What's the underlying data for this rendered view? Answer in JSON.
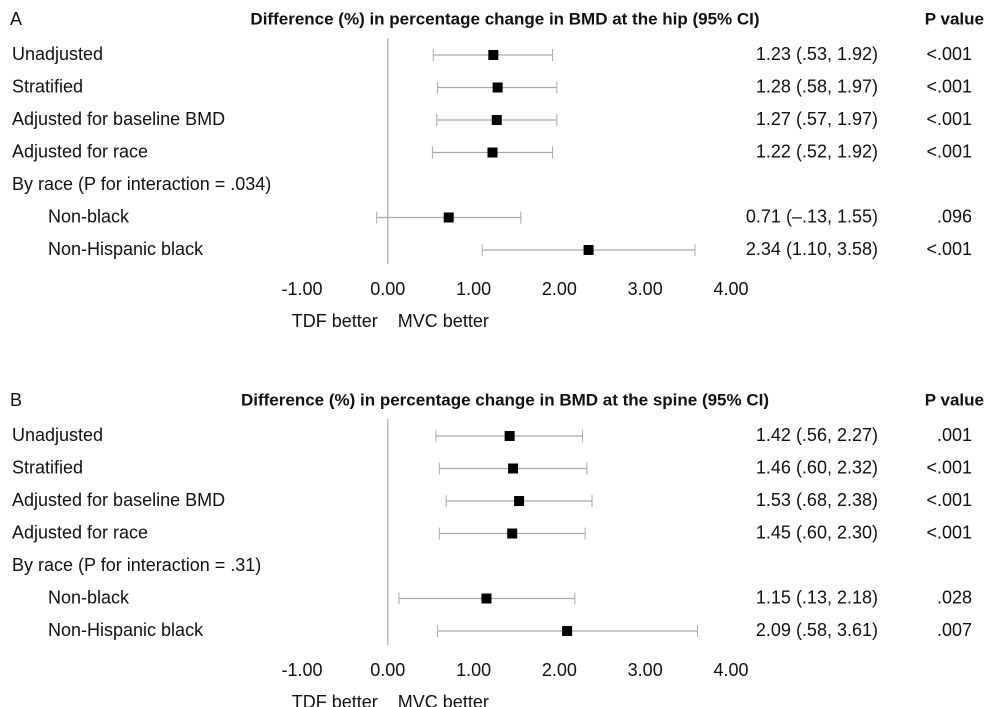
{
  "chart_data": [
    {
      "type": "forest",
      "panel_label": "A",
      "title": "Difference (%) in percentage change in BMD at the hip (95% CI)",
      "p_header": "P value",
      "categories": [
        "Unadjusted",
        "Stratified",
        "Adjusted for baseline BMD",
        "Adjusted for race",
        "By race (P for interaction = .034)",
        "Non-black",
        "Non-Hispanic black"
      ],
      "values": [
        1.23,
        1.28,
        1.27,
        1.22,
        null,
        0.71,
        2.34
      ],
      "lower": [
        0.53,
        0.58,
        0.57,
        0.52,
        null,
        -0.13,
        1.1
      ],
      "upper": [
        1.92,
        1.97,
        1.97,
        1.92,
        null,
        1.55,
        3.58
      ],
      "value_labels": [
        "1.23 (.53, 1.92)",
        "1.28 (.58, 1.97)",
        "1.27 (.57, 1.97)",
        "1.22 (.52, 1.92)",
        null,
        "0.71 (–.13, 1.55)",
        "2.34 (1.10, 3.58)"
      ],
      "p_values": [
        "<.001",
        "<.001",
        "<.001",
        "<.001",
        null,
        ".096",
        "<.001"
      ],
      "xlim": [
        -1,
        4
      ],
      "xticks": [
        {
          "value": -1,
          "label": "-1.00"
        },
        {
          "value": 0,
          "label": "0.00"
        },
        {
          "value": 1,
          "label": "1.00"
        },
        {
          "value": 2,
          "label": "2.00"
        },
        {
          "value": 3,
          "label": "3.00"
        },
        {
          "value": 4,
          "label": "4.00"
        }
      ],
      "left_note": "TDF better",
      "right_note": "MVC better",
      "color": "#000000"
    },
    {
      "type": "forest",
      "panel_label": "B",
      "title": "Difference (%) in percentage change in BMD at the spine (95% CI)",
      "p_header": "P value",
      "categories": [
        "Unadjusted",
        "Stratified",
        "Adjusted for baseline BMD",
        "Adjusted for race",
        "By race (P for interaction = .31)",
        "Non-black",
        "Non-Hispanic black"
      ],
      "values": [
        1.42,
        1.46,
        1.53,
        1.45,
        null,
        1.15,
        2.09
      ],
      "lower": [
        0.56,
        0.6,
        0.68,
        0.6,
        null,
        0.13,
        0.58
      ],
      "upper": [
        2.27,
        2.32,
        2.38,
        2.3,
        null,
        2.18,
        3.61
      ],
      "value_labels": [
        "1.42 (.56, 2.27)",
        "1.46 (.60, 2.32)",
        "1.53 (.68, 2.38)",
        "1.45 (.60, 2.30)",
        null,
        "1.15 (.13, 2.18)",
        "2.09 (.58, 3.61)"
      ],
      "p_values": [
        ".001",
        "<.001",
        "<.001",
        "<.001",
        null,
        ".028",
        ".007"
      ],
      "xlim": [
        -1,
        4
      ],
      "xticks": [
        {
          "value": -1,
          "label": "-1.00"
        },
        {
          "value": 0,
          "label": "0.00"
        },
        {
          "value": 1,
          "label": "1.00"
        },
        {
          "value": 2,
          "label": "2.00"
        },
        {
          "value": 3,
          "label": "3.00"
        },
        {
          "value": 4,
          "label": "4.00"
        }
      ],
      "left_note": "TDF better",
      "right_note": "MVC better",
      "color": "#000000"
    }
  ]
}
